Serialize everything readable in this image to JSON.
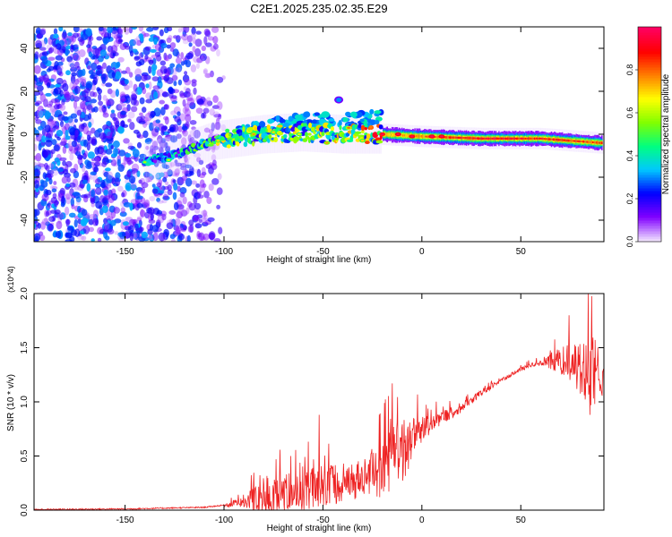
{
  "title": "C2E1.2025.235.02.35.E29",
  "chart_data": [
    {
      "type": "heatmap",
      "xlabel": "Height of straight line (km)",
      "ylabel": "Frequency (Hz)",
      "xlim": [
        -196,
        92
      ],
      "ylim": [
        -50,
        50
      ],
      "xticks": [
        -150,
        -100,
        -50,
        0,
        50
      ],
      "yticks": [
        -40,
        -20,
        0,
        20,
        40
      ],
      "colorbar": {
        "label": "Normalized spectral amplitude",
        "range": [
          0,
          1
        ],
        "ticks": [
          "0.0",
          "0.2",
          "0.4",
          "0.6",
          "0.8"
        ],
        "tick_values": [
          0,
          0.2,
          0.4,
          0.6,
          0.8
        ],
        "colors": [
          "#f0e0ff",
          "#8000ff",
          "#0000ff",
          "#00c8ff",
          "#00ff80",
          "#80ff00",
          "#ffff00",
          "#ff8000",
          "#ff0000",
          "#ff0060"
        ]
      },
      "features": [
        {
          "name": "noise_field",
          "x_range": [
            -196,
            -100
          ],
          "f_range": [
            -50,
            50
          ],
          "amplitude": 0.15
        },
        {
          "name": "main_ridge",
          "points": [
            [
              -140,
              -13
            ],
            [
              -120,
              -8
            ],
            [
              -105,
              -3
            ],
            [
              -80,
              0
            ],
            [
              -60,
              1
            ],
            [
              -40,
              0
            ],
            [
              -20,
              0
            ],
            [
              0,
              -1
            ],
            [
              30,
              -2
            ],
            [
              60,
              -2
            ],
            [
              90,
              -4
            ]
          ],
          "amplitude": [
            0.3,
            0.35,
            0.5,
            0.55,
            0.5,
            0.55,
            0.7,
            0.8,
            0.95,
            0.9,
            0.85
          ]
        },
        {
          "name": "upper_branch",
          "points": [
            [
              -100,
              -3
            ],
            [
              -80,
              3
            ],
            [
              -60,
              6
            ],
            [
              -40,
              6
            ],
            [
              -20,
              8
            ]
          ],
          "amplitude": 0.4
        },
        {
          "name": "isolated_burst",
          "points": [
            [
              -42,
              16
            ]
          ],
          "amplitude": 0.3
        }
      ]
    },
    {
      "type": "line",
      "xlabel": "Height of straight line (km)",
      "ylabel": "SNR (10 * v/v)",
      "y_multiplier": "(x10^4)",
      "xlim": [
        -196,
        92
      ],
      "ylim": [
        0,
        2.0
      ],
      "xticks": [
        -150,
        -100,
        -50,
        0,
        50
      ],
      "yticks": [
        "0.0",
        "0.5",
        "1.0",
        "1.5",
        "2.0"
      ],
      "color": "#ee2222",
      "envelope": {
        "x": [
          -196,
          -150,
          -110,
          -100,
          -90,
          -80,
          -70,
          -60,
          -50,
          -40,
          -30,
          -20,
          -15,
          -10,
          0,
          10,
          20,
          30,
          40,
          50,
          60,
          70,
          80,
          86,
          92
        ],
        "baseline": [
          0.0,
          0.005,
          0.02,
          0.04,
          0.08,
          0.12,
          0.15,
          0.18,
          0.22,
          0.25,
          0.3,
          0.35,
          0.55,
          0.55,
          0.75,
          0.85,
          0.95,
          1.08,
          1.2,
          1.3,
          1.37,
          1.38,
          1.3,
          1.25,
          1.3
        ],
        "noise": [
          0.0,
          0.005,
          0.01,
          0.02,
          0.08,
          0.3,
          0.3,
          0.3,
          0.35,
          0.3,
          0.3,
          0.4,
          0.6,
          0.5,
          0.2,
          0.1,
          0.08,
          0.05,
          0.03,
          0.03,
          0.06,
          0.2,
          0.45,
          0.6,
          0.4
        ]
      },
      "notable_points": [
        {
          "x": -52,
          "y": 0.88
        },
        {
          "x": -15,
          "y": 1.17
        },
        {
          "x": 84,
          "y": 2.0
        },
        {
          "x": 85,
          "y": 0.88
        }
      ]
    }
  ]
}
